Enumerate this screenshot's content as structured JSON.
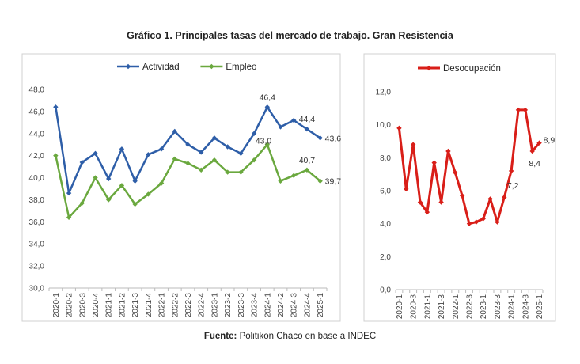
{
  "title": "Gráfico 1. Principales tasas del mercado de trabajo. Gran Resistencia",
  "source": {
    "label": "Fuente:",
    "text": "Politikon Chaco en base a INDEC"
  },
  "colors": {
    "actividad": "#2E5EA8",
    "empleo": "#6AA83E",
    "desocupacion": "#D91E18",
    "axis": "#BBBBBB",
    "frame": "#D0D0D0"
  },
  "chart_data": [
    {
      "type": "line",
      "categories": [
        "2020-1",
        "2020-2",
        "2020-3",
        "2020-4",
        "2021-1",
        "2021-2",
        "2021-3",
        "2021-4",
        "2022-1",
        "2022-2",
        "2022-3",
        "2022-4",
        "2023-1",
        "2023-2",
        "2023-3",
        "2023-4",
        "2024-1",
        "2024-2",
        "2024-3",
        "2024-4",
        "2025-1"
      ],
      "series": [
        {
          "name": "Actividad",
          "color": "#2E5EA8",
          "values": [
            46.4,
            38.6,
            41.4,
            42.2,
            39.9,
            42.6,
            39.7,
            42.1,
            42.6,
            44.2,
            43.0,
            42.3,
            43.6,
            42.8,
            42.2,
            44.0,
            46.4,
            44.6,
            45.2,
            44.4,
            43.6
          ]
        },
        {
          "name": "Empleo",
          "color": "#6AA83E",
          "values": [
            42.0,
            36.4,
            37.7,
            40.0,
            38.0,
            39.3,
            37.6,
            38.5,
            39.5,
            41.7,
            41.3,
            40.7,
            41.6,
            40.5,
            40.5,
            41.6,
            43.0,
            39.7,
            40.2,
            40.7,
            39.7
          ]
        }
      ],
      "data_labels": [
        {
          "series": "Actividad",
          "category": "2024-1",
          "text": "46,4"
        },
        {
          "series": "Actividad",
          "category": "2024-4",
          "text": "44,4"
        },
        {
          "series": "Actividad",
          "category": "2025-1",
          "text": "43,6"
        },
        {
          "series": "Empleo",
          "category": "2024-1",
          "text": "43,0"
        },
        {
          "series": "Empleo",
          "category": "2024-4",
          "text": "40,7"
        },
        {
          "series": "Empleo",
          "category": "2025-1",
          "text": "39,7"
        }
      ],
      "yticks": [
        "30,0",
        "32,0",
        "34,0",
        "36,0",
        "38,0",
        "40,0",
        "42,0",
        "44,0",
        "46,0",
        "48,0"
      ],
      "ylim": [
        30,
        48
      ],
      "grid": false,
      "legend": "top-left"
    },
    {
      "type": "line",
      "categories": [
        "2020-1",
        "2020-2",
        "2020-3",
        "2020-4",
        "2021-1",
        "2021-2",
        "2021-3",
        "2021-4",
        "2022-1",
        "2022-2",
        "2022-3",
        "2022-4",
        "2023-1",
        "2023-2",
        "2023-3",
        "2023-4",
        "2024-1",
        "2024-2",
        "2024-3",
        "2024-4",
        "2025-1"
      ],
      "xtick_labels": [
        "2020-1",
        "2020-3",
        "2021-1",
        "2021-3",
        "2022-1",
        "2022-3",
        "2023-1",
        "2023-3",
        "2024-1",
        "2024-3",
        "2025-1"
      ],
      "series": [
        {
          "name": "Desocupación",
          "color": "#D91E18",
          "values": [
            9.8,
            6.1,
            8.8,
            5.3,
            4.7,
            7.7,
            5.3,
            8.4,
            7.1,
            5.7,
            4.0,
            4.1,
            4.3,
            5.5,
            4.1,
            5.6,
            7.2,
            10.9,
            10.9,
            8.4,
            8.9
          ]
        }
      ],
      "data_labels": [
        {
          "series": "Desocupación",
          "category": "2024-1",
          "text": "7,2"
        },
        {
          "series": "Desocupación",
          "category": "2024-4",
          "text": "8,4"
        },
        {
          "series": "Desocupación",
          "category": "2025-1",
          "text": "8,9"
        }
      ],
      "yticks": [
        "0,0",
        "2,0",
        "4,0",
        "6,0",
        "8,0",
        "10,0",
        "12,0"
      ],
      "ylim": [
        0,
        12
      ],
      "grid": false,
      "legend": "top-center"
    }
  ]
}
